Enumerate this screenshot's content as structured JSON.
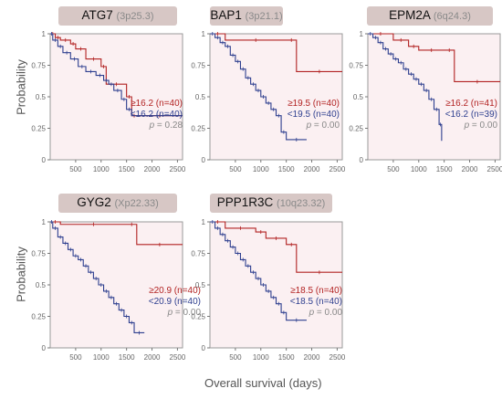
{
  "colors": {
    "high": "#b22222",
    "low": "#2e3f8f",
    "pvalue": "#888888"
  },
  "axes": {
    "ylabel": "Probability",
    "xlabel": "Overall survival (days)",
    "yticks": [
      "0",
      "0.25",
      "0.5",
      "0.75",
      "1"
    ],
    "xticks": [
      "500",
      "1000",
      "1500",
      "2000",
      "2500"
    ]
  },
  "chart_data": [
    {
      "type": "line",
      "gene": "ATG7",
      "locus": "(3p25.3)",
      "xlim": [
        0,
        2600
      ],
      "ylim": [
        0,
        1
      ],
      "series": [
        {
          "name": "≥16.2 (n=40)",
          "x": [
            0,
            100,
            200,
            400,
            500,
            700,
            1000,
            1100,
            1500,
            1600,
            1700,
            2600
          ],
          "y": [
            1,
            0.97,
            0.95,
            0.92,
            0.88,
            0.8,
            0.74,
            0.6,
            0.5,
            0.35,
            0.35,
            0.35
          ]
        },
        {
          "name": "<16.2 (n=40)",
          "x": [
            0,
            50,
            150,
            250,
            400,
            550,
            700,
            900,
            1050,
            1150,
            1250,
            1400,
            1500,
            1600,
            2600
          ],
          "y": [
            1,
            0.95,
            0.9,
            0.85,
            0.8,
            0.74,
            0.7,
            0.67,
            0.63,
            0.6,
            0.55,
            0.48,
            0.4,
            0.35,
            0.35
          ]
        }
      ],
      "pvalue": "p = 0.28"
    },
    {
      "type": "line",
      "gene": "BAP1",
      "locus": "(3p21.1)",
      "xlim": [
        0,
        2600
      ],
      "ylim": [
        0,
        1
      ],
      "series": [
        {
          "name": "≥19.5 (n=40)",
          "x": [
            0,
            300,
            1500,
            1700,
            2600
          ],
          "y": [
            1,
            0.95,
            0.95,
            0.7,
            0.7
          ]
        },
        {
          "name": "<19.5 (n=40)",
          "x": [
            0,
            100,
            200,
            300,
            400,
            500,
            600,
            700,
            800,
            900,
            1000,
            1100,
            1200,
            1300,
            1400,
            1500,
            1900
          ],
          "y": [
            1,
            0.97,
            0.93,
            0.9,
            0.83,
            0.78,
            0.72,
            0.65,
            0.6,
            0.55,
            0.5,
            0.45,
            0.4,
            0.35,
            0.22,
            0.16,
            0.16
          ]
        }
      ],
      "pvalue": "p = 0.00"
    },
    {
      "type": "line",
      "gene": "EPM2A",
      "locus": "(6q24.3)",
      "xlim": [
        0,
        2600
      ],
      "ylim": [
        0,
        1
      ],
      "series": [
        {
          "name": "≥16.2 (n=41)",
          "x": [
            0,
            500,
            800,
            1000,
            1500,
            1700,
            2600
          ],
          "y": [
            1,
            0.95,
            0.9,
            0.87,
            0.87,
            0.62,
            0.62
          ]
        },
        {
          "name": "<16.2 (n=39)",
          "x": [
            0,
            100,
            200,
            300,
            400,
            500,
            600,
            700,
            800,
            900,
            1000,
            1100,
            1200,
            1300,
            1400,
            1450
          ],
          "y": [
            1,
            0.97,
            0.93,
            0.88,
            0.84,
            0.8,
            0.77,
            0.72,
            0.68,
            0.64,
            0.6,
            0.55,
            0.48,
            0.4,
            0.28,
            0.15
          ]
        }
      ],
      "pvalue": "p = 0.00"
    },
    {
      "type": "line",
      "gene": "GYG2",
      "locus": "(Xp22.33)",
      "xlim": [
        0,
        2600
      ],
      "ylim": [
        0,
        1
      ],
      "series": [
        {
          "name": "≥20.9 (n=40)",
          "x": [
            0,
            200,
            1500,
            1700,
            2600
          ],
          "y": [
            1,
            0.98,
            0.98,
            0.82,
            0.82
          ]
        },
        {
          "name": "<20.9 (n=40)",
          "x": [
            0,
            50,
            150,
            250,
            350,
            450,
            550,
            650,
            750,
            850,
            950,
            1050,
            1150,
            1250,
            1350,
            1450,
            1550,
            1650,
            1850
          ],
          "y": [
            1,
            0.95,
            0.88,
            0.83,
            0.78,
            0.73,
            0.7,
            0.65,
            0.6,
            0.55,
            0.5,
            0.45,
            0.4,
            0.35,
            0.3,
            0.25,
            0.2,
            0.12,
            0.12
          ]
        }
      ],
      "pvalue": "p = 0.00"
    },
    {
      "type": "line",
      "gene": "PPP1R3C",
      "locus": "(10q23.32)",
      "xlim": [
        0,
        2600
      ],
      "ylim": [
        0,
        1
      ],
      "series": [
        {
          "name": "≥18.5 (n=40)",
          "x": [
            0,
            300,
            900,
            1100,
            1500,
            1700,
            2600
          ],
          "y": [
            1,
            0.95,
            0.92,
            0.87,
            0.82,
            0.6,
            0.6
          ]
        },
        {
          "name": "<18.5 (n=40)",
          "x": [
            0,
            100,
            200,
            300,
            400,
            500,
            600,
            700,
            800,
            900,
            1000,
            1100,
            1200,
            1300,
            1400,
            1500,
            1900
          ],
          "y": [
            1,
            0.95,
            0.9,
            0.85,
            0.8,
            0.75,
            0.7,
            0.65,
            0.6,
            0.55,
            0.5,
            0.45,
            0.4,
            0.35,
            0.28,
            0.22,
            0.22
          ]
        }
      ],
      "pvalue": "p = 0.00"
    }
  ]
}
